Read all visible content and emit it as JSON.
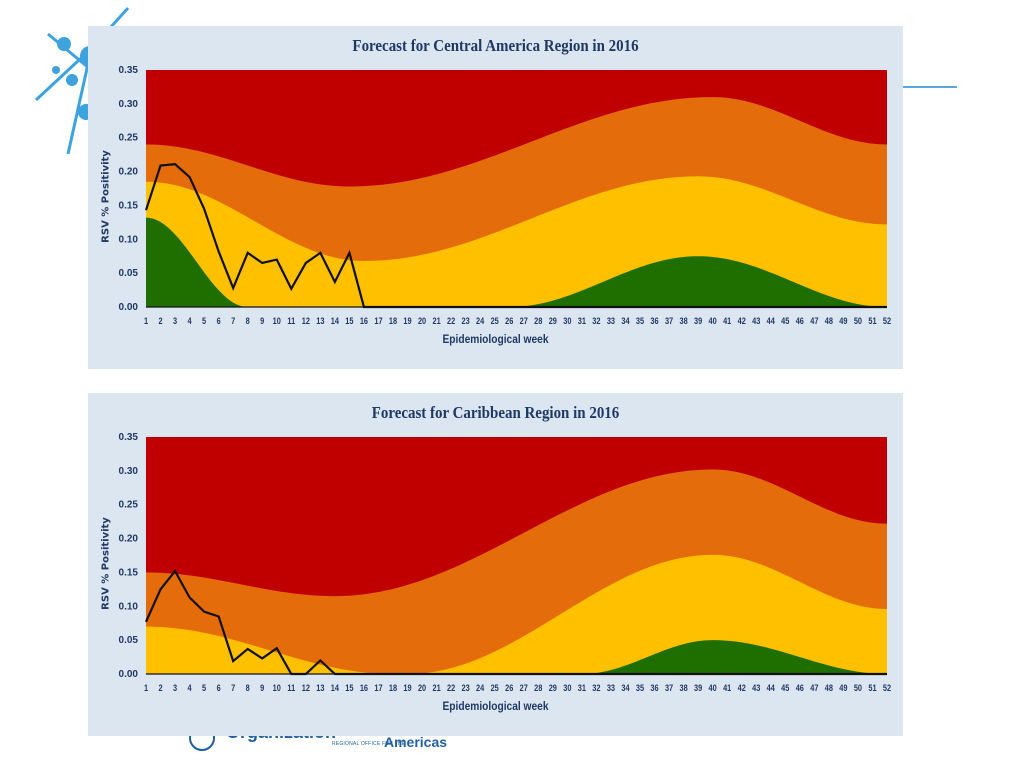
{
  "colors": {
    "red": "#c00000",
    "orange": "#e46c0a",
    "yellow": "#ffc000",
    "green": "#1e6e00",
    "line": "#111111",
    "panel": "#dce6f1",
    "text": "#1f3864"
  },
  "footer": {
    "org_text": "Organization",
    "small_text": "REGIONAL OFFICE FOR THE",
    "americas": "Americas"
  },
  "chart_data": [
    {
      "type": "area",
      "title": "Forecast for Central America Region in 2016",
      "xlabel": "Epidemiological week",
      "ylabel": "RSV % Positivity",
      "x": [
        1,
        2,
        3,
        4,
        5,
        6,
        7,
        8,
        9,
        10,
        11,
        12,
        13,
        14,
        15,
        16,
        17,
        18,
        19,
        20,
        21,
        22,
        23,
        24,
        25,
        26,
        27,
        28,
        29,
        30,
        31,
        32,
        33,
        34,
        35,
        36,
        37,
        38,
        39,
        40,
        41,
        42,
        43,
        44,
        45,
        46,
        47,
        48,
        49,
        50,
        51,
        52
      ],
      "ylim": [
        0,
        0.35
      ],
      "yticks": [
        "0.00",
        "0.05",
        "0.10",
        "0.15",
        "0.20",
        "0.25",
        "0.30",
        "0.35"
      ],
      "thresholds": {
        "red_orange": {
          "start": 0.24,
          "min": 0.178,
          "min_week": 15,
          "max": 0.31,
          "max_week": 40,
          "end": 0.24
        },
        "orange_yellow": {
          "start": 0.185,
          "min": 0.068,
          "min_week": 16,
          "max": 0.193,
          "max_week": 39,
          "end": 0.122
        },
        "yellow_green": {
          "start": 0.132,
          "zero_from": 8,
          "zero_to": 26,
          "max": 0.075,
          "max_week": 39,
          "end": 0.0
        }
      },
      "series": [
        {
          "values": [
            0.143,
            0.209,
            0.211,
            0.192,
            0.145,
            0.082,
            0.028,
            0.08,
            0.065,
            0.07,
            0.027,
            0.065,
            0.08,
            0.037,
            0.08,
            0.0,
            0,
            0,
            0,
            0,
            0,
            0,
            0,
            0,
            0,
            0,
            0,
            0,
            0,
            0,
            0,
            0,
            0,
            0,
            0,
            0,
            0,
            0,
            0,
            0,
            0,
            0,
            0,
            0,
            0,
            0,
            0,
            0,
            0,
            0,
            0,
            0
          ]
        }
      ]
    },
    {
      "type": "area",
      "title": "Forecast for Caribbean Region in 2016",
      "xlabel": "Epidemiological week",
      "ylabel": "RSV % Positivity",
      "x": [
        1,
        2,
        3,
        4,
        5,
        6,
        7,
        8,
        9,
        10,
        11,
        12,
        13,
        14,
        15,
        16,
        17,
        18,
        19,
        20,
        21,
        22,
        23,
        24,
        25,
        26,
        27,
        28,
        29,
        30,
        31,
        32,
        33,
        34,
        35,
        36,
        37,
        38,
        39,
        40,
        41,
        42,
        43,
        44,
        45,
        46,
        47,
        48,
        49,
        50,
        51,
        52
      ],
      "ylim": [
        0,
        0.35
      ],
      "yticks": [
        "0.00",
        "0.05",
        "0.10",
        "0.15",
        "0.20",
        "0.25",
        "0.30",
        "0.35"
      ],
      "thresholds": {
        "red_orange": {
          "start": 0.15,
          "min": 0.115,
          "min_week": 14,
          "max": 0.302,
          "max_week": 40,
          "end": 0.222
        },
        "orange_yellow": {
          "start": 0.07,
          "zero_from": 18,
          "zero_to": 19,
          "max": 0.176,
          "max_week": 40,
          "end": 0.096
        },
        "yellow_green": {
          "start": 0.0,
          "zero_from": 1,
          "zero_to": 31,
          "max": 0.05,
          "max_week": 40,
          "end": 0.0
        }
      },
      "series": [
        {
          "values": [
            0.077,
            0.125,
            0.152,
            0.113,
            0.092,
            0.085,
            0.019,
            0.037,
            0.023,
            0.038,
            0.0,
            0.0,
            0.02,
            0.0,
            0,
            0,
            0,
            0,
            0,
            0,
            0,
            0,
            0,
            0,
            0,
            0,
            0,
            0,
            0,
            0,
            0,
            0,
            0,
            0,
            0,
            0,
            0,
            0,
            0,
            0,
            0,
            0,
            0,
            0,
            0,
            0,
            0,
            0,
            0,
            0,
            0,
            0
          ]
        }
      ]
    }
  ]
}
